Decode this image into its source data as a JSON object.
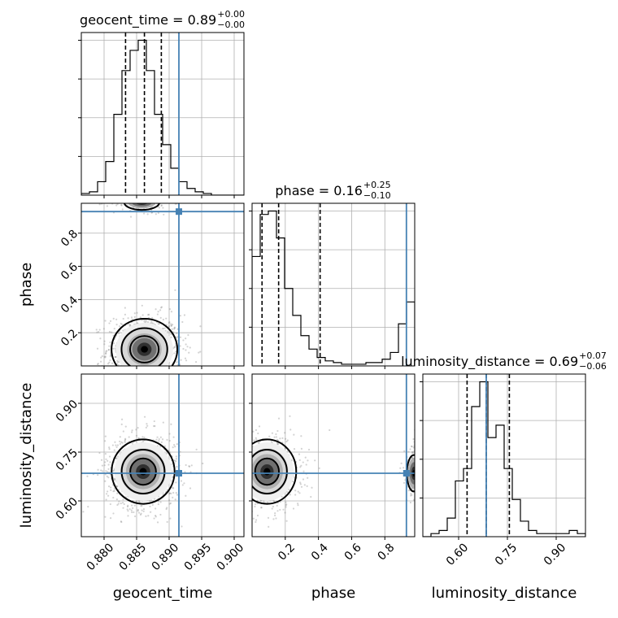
{
  "chart_data": {
    "type": "corner",
    "parameters": [
      "geocent_time",
      "phase",
      "luminosity_distance"
    ],
    "truths": {
      "geocent_time": 0.8915,
      "phase": 0.93,
      "luminosity_distance": 0.685
    },
    "colors": {
      "truth": "#4682b4",
      "hist": "#000000",
      "grid": "#b0b0b0",
      "scatter": "#808080"
    },
    "ranges": {
      "geocent_time": [
        0.8765,
        0.9015
      ],
      "phase": [
        0.0,
        0.98
      ],
      "luminosity_distance": [
        0.49,
        0.99
      ]
    },
    "grid": true,
    "titles": [
      {
        "param": "geocent_time",
        "text": "geocent_time = 0.89",
        "sup": "+0.00",
        "sub": "−0.00"
      },
      {
        "param": "phase",
        "text": "phase = 0.16",
        "sup": "+0.25",
        "sub": "−0.10"
      },
      {
        "param": "luminosity_distance",
        "text": "luminosity_distance = 0.69",
        "sup": "+0.07",
        "sub": "−0.06"
      }
    ],
    "quantiles": {
      "geocent_time": [
        0.8833,
        0.8862,
        0.8888
      ],
      "phase": [
        0.06,
        0.16,
        0.41
      ],
      "luminosity_distance": [
        0.626,
        0.685,
        0.756
      ]
    },
    "ticks": {
      "geocent_time": {
        "values": [
          0.88,
          0.885,
          0.89,
          0.895,
          0.9
        ],
        "labels": [
          "0.880",
          "0.885",
          "0.890",
          "0.895",
          "0.900"
        ]
      },
      "phase": {
        "values": [
          0.2,
          0.4,
          0.6,
          0.8
        ],
        "labels": [
          "0.2",
          "0.4",
          "0.6",
          "0.8"
        ]
      },
      "luminosity_distance": {
        "values": [
          0.6,
          0.75,
          0.9
        ],
        "labels": [
          "0.60",
          "0.75",
          "0.90"
        ]
      }
    },
    "histograms": {
      "geocent_time": {
        "bin_start": 0.8765,
        "bin_width": 0.00125,
        "counts": [
          1,
          2,
          8,
          20,
          48,
          74,
          86,
          92,
          74,
          48,
          30,
          16,
          8,
          4,
          2,
          1,
          0,
          0,
          0,
          0
        ]
      },
      "phase": {
        "bin_start": 0.0,
        "bin_width": 0.049,
        "counts": [
          65,
          90,
          92,
          76,
          46,
          30,
          18,
          10,
          5,
          3,
          2,
          1,
          1,
          1,
          2,
          2,
          4,
          8,
          25,
          38
        ]
      },
      "luminosity_distance": {
        "bin_start": 0.49,
        "bin_width": 0.025,
        "counts": [
          0,
          1,
          2,
          6,
          18,
          22,
          42,
          50,
          32,
          36,
          22,
          12,
          5,
          2,
          1,
          1,
          1,
          1,
          2,
          1
        ]
      }
    },
    "pairs": [
      {
        "x": "geocent_time",
        "y": "phase",
        "clusters": [
          {
            "cx": 0.8862,
            "cy": 0.1,
            "sx": 0.0022,
            "sy": 0.08,
            "n": 900,
            "levels": [
              1.0,
              1.6,
              2.3
            ]
          },
          {
            "cx": 0.8858,
            "cy": 0.985,
            "sx": 0.0018,
            "sy": 0.03,
            "n": 150,
            "levels": [
              1.5
            ]
          }
        ]
      },
      {
        "x": "geocent_time",
        "y": "luminosity_distance",
        "clusters": [
          {
            "cx": 0.886,
            "cy": 0.69,
            "sx": 0.0022,
            "sy": 0.045,
            "n": 900,
            "levels": [
              0.9,
              1.5,
              2.2
            ]
          }
        ]
      },
      {
        "x": "phase",
        "y": "luminosity_distance",
        "clusters": [
          {
            "cx": 0.09,
            "cy": 0.69,
            "sx": 0.08,
            "sy": 0.045,
            "n": 700,
            "levels": [
              0.9,
              1.5,
              2.2
            ]
          },
          {
            "cx": 0.975,
            "cy": 0.685,
            "sx": 0.03,
            "sy": 0.04,
            "n": 150,
            "levels": [
              1.4
            ]
          }
        ]
      }
    ]
  }
}
